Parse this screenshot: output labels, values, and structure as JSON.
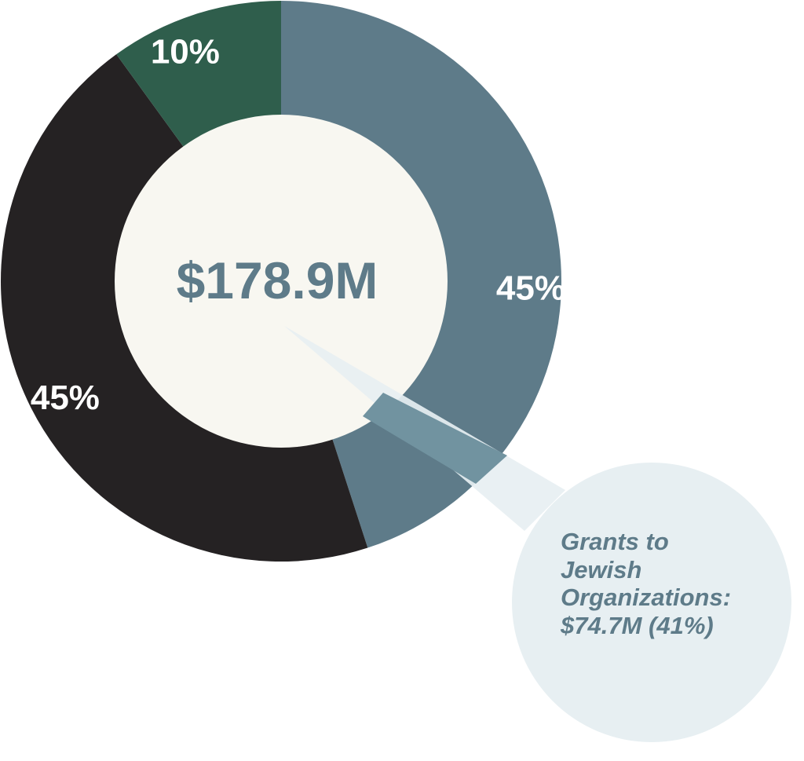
{
  "colors": {
    "slate": "#5e7b89",
    "black": "#252223",
    "green": "#2f5e4c",
    "center": "#f8f7f1",
    "callout_bubble": "#e7eff2",
    "callout_overlap": "#7193a0"
  },
  "chart_data": {
    "type": "pie",
    "style": "donut",
    "center_label": "$178.9M",
    "slices": [
      {
        "label": "45%",
        "value": 45,
        "color": "#5e7b89"
      },
      {
        "label": "45%",
        "value": 45,
        "color": "#252223"
      },
      {
        "label": "10%",
        "value": 10,
        "color": "#2f5e4c"
      }
    ],
    "callout": {
      "lines": [
        "Grants to",
        "Jewish",
        "Organizations:",
        "$74.7M (41%)"
      ],
      "value_millions": 74.7,
      "percent": 41
    }
  }
}
